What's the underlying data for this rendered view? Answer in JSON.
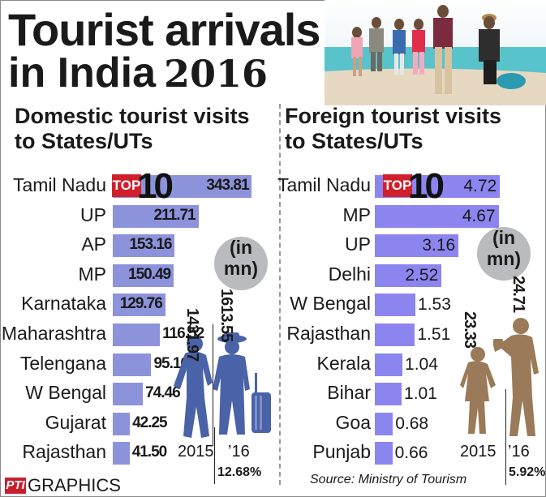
{
  "header": {
    "title_line1": "Tourist arrivals",
    "title_line2": "in India",
    "year": "2016"
  },
  "domestic": {
    "title_line1": "Domestic tourist visits",
    "title_line2": "to States/UTs",
    "badge_box": "TOP",
    "badge_num": "10",
    "unit_line1": "(in",
    "unit_line2": "mn)",
    "total_2015": "1431.97",
    "total_2016": "1613.55",
    "year_2015": "2015",
    "year_2016": "’16",
    "growth": "12.68%",
    "silhouette_color": "#4a63a8"
  },
  "foreign": {
    "title_line1": "Foreign tourist visits",
    "title_line2": "to States/UTs",
    "badge_box": "TOP",
    "badge_num": "10",
    "unit_line1": "(in",
    "unit_line2": "mn)",
    "total_2015": "23.33",
    "total_2016": "24.71",
    "year_2015": "2015",
    "year_2016": "’16",
    "growth": "5.92%",
    "silhouette_color": "#9a7a58"
  },
  "footer": {
    "brand_mark": "PTI",
    "brand": "GRAPHICS",
    "source": "Source: Ministry of Tourism"
  },
  "chart_data": [
    {
      "type": "bar",
      "title": "Domestic tourist visits to States/UTs",
      "orientation": "horizontal",
      "unit": "mn",
      "bar_color": "#8d93db",
      "categories": [
        "Tamil Nadu",
        "UP",
        "AP",
        "MP",
        "Karnataka",
        "Maharashtra",
        "Telengana",
        "W Bengal",
        "Gujarat",
        "Rajasthan"
      ],
      "values": [
        343.81,
        211.71,
        153.16,
        150.49,
        129.76,
        116.52,
        95.16,
        74.46,
        42.25,
        41.5
      ],
      "labels": [
        "343.81",
        "211.71",
        "153.16",
        "150.49",
        "129.76",
        "116.52",
        "95.16",
        "74.46",
        "42.25",
        "41.50"
      ],
      "xlim": [
        0,
        345
      ]
    },
    {
      "type": "bar",
      "title": "Foreign tourist visits to States/UTs",
      "orientation": "horizontal",
      "unit": "mn",
      "bar_color": "#8c85f0",
      "categories": [
        "Tamil Nadu",
        "MP",
        "UP",
        "Delhi",
        "W Bengal",
        "Rajasthan",
        "Kerala",
        "Bihar",
        "Goa",
        "Punjab"
      ],
      "values": [
        4.72,
        4.67,
        3.16,
        2.52,
        1.53,
        1.51,
        1.04,
        1.01,
        0.68,
        0.66
      ],
      "labels": [
        "4.72",
        "4.67",
        "3.16",
        "2.52",
        "1.53",
        "1.51",
        "1.04",
        "1.01",
        "0.68",
        "0.66"
      ],
      "xlim": [
        0,
        4.8
      ]
    }
  ]
}
